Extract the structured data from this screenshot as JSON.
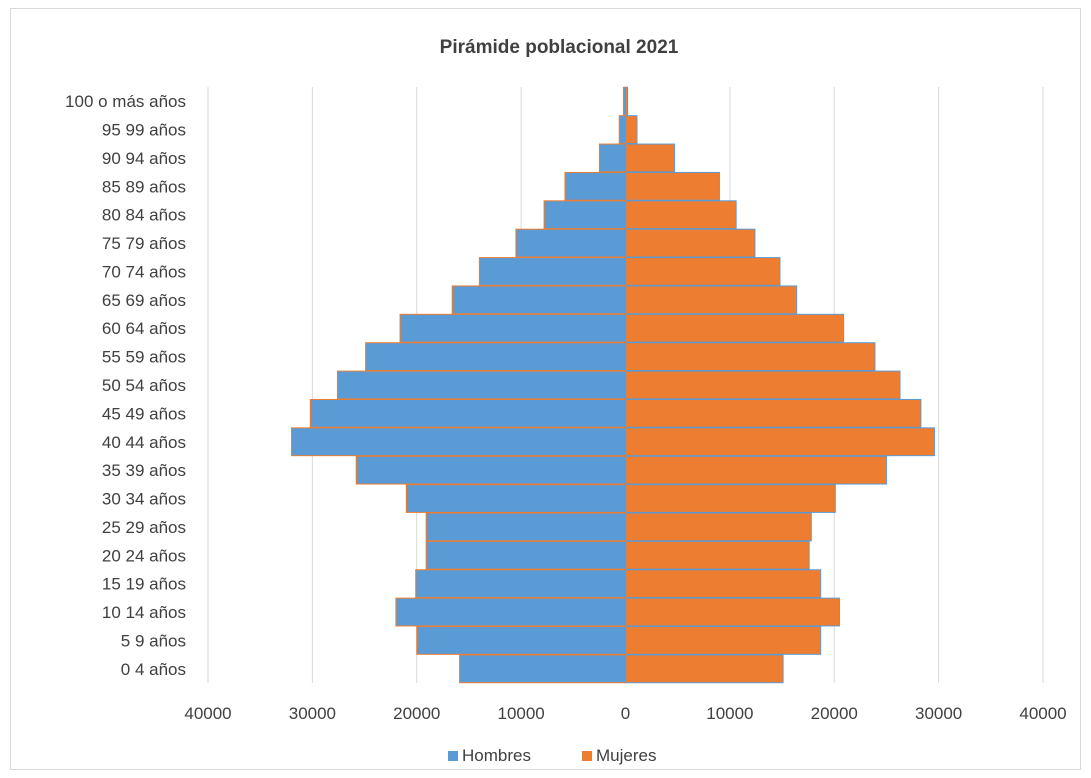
{
  "chart_data": {
    "type": "bar",
    "orientation": "horizontal",
    "layout": "population-pyramid",
    "title": "Pirámide poblacional 2021",
    "categories": [
      "0 4 años",
      "5 9 años",
      "10 14 años",
      "15 19 años",
      "20 24 años",
      "25 29 años",
      "30 34 años",
      "35 39 años",
      "40 44 años",
      "45 49 años",
      "50 54 años",
      "55 59 años",
      "60 64 años",
      "65 69 años",
      "70 74 años",
      "75 79 años",
      "80 84 años",
      "85 89 años",
      "90 94 años",
      "95 99 años",
      "100 o más años"
    ],
    "series": [
      {
        "name": "Hombres",
        "color": "#5b9bd5",
        "edge": "#ed7d31",
        "values": [
          15900,
          20000,
          22000,
          20100,
          19100,
          19100,
          21000,
          25800,
          32000,
          30200,
          27600,
          24900,
          21600,
          16600,
          14000,
          10500,
          7800,
          5800,
          2500,
          600,
          200
        ]
      },
      {
        "name": "Mujeres",
        "color": "#ed7d31",
        "edge": "#5b9bd5",
        "values": [
          15100,
          18700,
          20500,
          18700,
          17600,
          17800,
          20100,
          25000,
          29600,
          28300,
          26300,
          23900,
          20900,
          16400,
          14800,
          12400,
          10600,
          9000,
          4700,
          1100,
          200
        ]
      }
    ],
    "xlim": [
      -40000,
      40000
    ],
    "xticks": [
      -40000,
      -30000,
      -20000,
      -10000,
      0,
      10000,
      20000,
      30000,
      40000
    ],
    "xtick_labels": [
      "40000",
      "30000",
      "20000",
      "10000",
      "0",
      "10000",
      "20000",
      "30000",
      "40000"
    ],
    "grid": "vertical",
    "legend_position": "bottom"
  }
}
